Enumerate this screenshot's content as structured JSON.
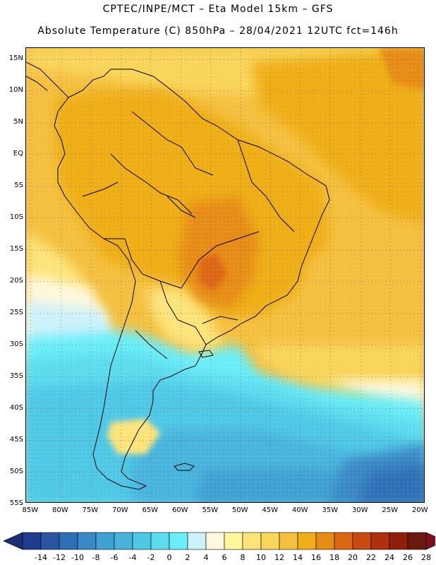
{
  "title": {
    "line1": "CPTEC/INPE/MCT –  Eta Model 15km – GFS",
    "line2": "Absolute Temperature (C) 850hPa – 28/04/2021 12UTC fct=146h"
  },
  "map": {
    "lat_labels": [
      "15N",
      "10N",
      "5N",
      "EQ",
      "5S",
      "10S",
      "15S",
      "20S",
      "25S",
      "30S",
      "35S",
      "40S",
      "45S",
      "50S",
      "55S"
    ],
    "lon_labels": [
      "85W",
      "80W",
      "75W",
      "70W",
      "65W",
      "60W",
      "55W",
      "50W",
      "45W",
      "40W",
      "35W",
      "30W",
      "25W",
      "20W"
    ],
    "lat_range": [
      15,
      -55
    ],
    "lon_range": [
      -85,
      -20
    ],
    "grid": "dotted"
  },
  "colorbar": {
    "ticks": [
      "-14",
      "-12",
      "-10",
      "-8",
      "-6",
      "-4",
      "-2",
      "0",
      "2",
      "4",
      "6",
      "8",
      "10",
      "12",
      "14",
      "16",
      "18",
      "20",
      "22",
      "24",
      "26",
      "28"
    ],
    "colors": [
      "#1e3d8c",
      "#2a55a4",
      "#2f6fb7",
      "#3a88c5",
      "#3fa0d2",
      "#48b4dd",
      "#4fc8e6",
      "#5ddcef",
      "#6aeef8",
      "#cdf2fb",
      "#fff8dc",
      "#fff59a",
      "#fde47a",
      "#f9d55a",
      "#f5c040",
      "#efae17",
      "#e78c13",
      "#dd6612",
      "#c94a10",
      "#b1300c",
      "#8f1e0b",
      "#6d1a0e"
    ],
    "under_color": "#1a2f78",
    "over_color": "#7a1020"
  }
}
